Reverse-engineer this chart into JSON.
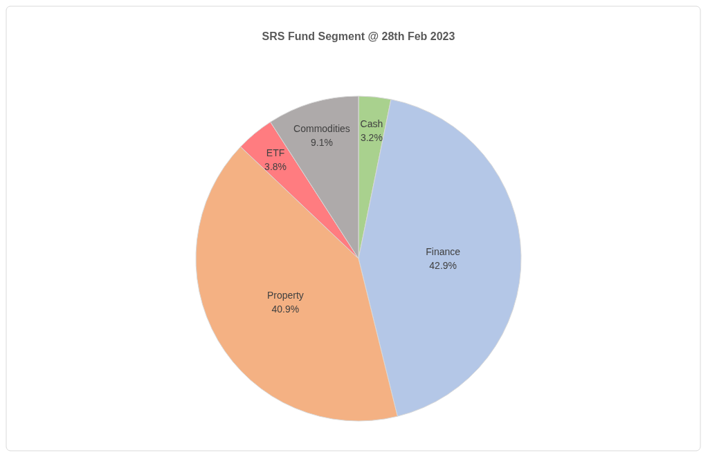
{
  "chart_data": {
    "type": "pie",
    "title": "SRS Fund Segment @ 28th Feb 2023",
    "categories": [
      "Cash",
      "Finance",
      "Property",
      "ETF",
      "Commodities"
    ],
    "values": [
      3.2,
      42.9,
      40.9,
      3.8,
      9.1
    ],
    "value_labels": [
      "3.2%",
      "42.9%",
      "40.9%",
      "3.8%",
      "9.1%"
    ],
    "colors": [
      "#a9d18e",
      "#b4c7e7",
      "#f4b183",
      "#ff7c80",
      "#aeaaaa"
    ],
    "legend": false
  }
}
